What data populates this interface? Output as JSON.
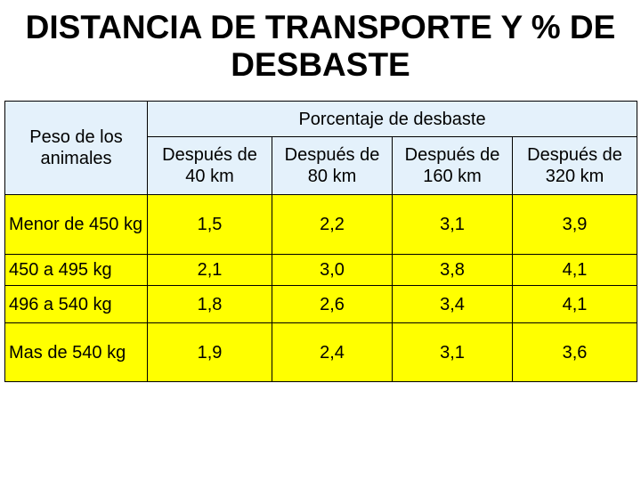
{
  "title": "DISTANCIA DE TRANSPORTE Y % DE DESBASTE",
  "table": {
    "corner": "Peso de los animales",
    "group_header": "Porcentaje de desbaste",
    "columns": [
      "Después de 40 km",
      "Después de 80 km",
      "Después de 160 km",
      "Después de 320 km"
    ],
    "rows": [
      {
        "label": "Menor de 450 kg",
        "values": [
          "1,5",
          "2,2",
          "3,1",
          "3,9"
        ]
      },
      {
        "label": "450 a 495 kg",
        "values": [
          "2,1",
          "3,0",
          "3,8",
          "4,1"
        ]
      },
      {
        "label": "496 a 540 kg",
        "values": [
          "1,8",
          "2,6",
          "3,4",
          "4,1"
        ]
      },
      {
        "label": "Mas de 540 kg",
        "values": [
          "1,9",
          "2,4",
          "3,1",
          "3,6"
        ]
      }
    ]
  }
}
